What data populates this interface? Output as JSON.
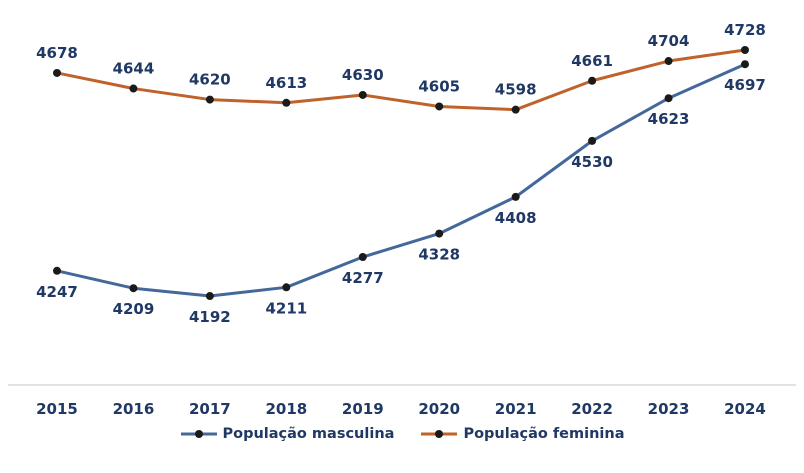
{
  "chart_data": {
    "type": "line",
    "title": "",
    "xlabel": "",
    "ylabel": "",
    "categories": [
      "2015",
      "2016",
      "2017",
      "2018",
      "2019",
      "2020",
      "2021",
      "2022",
      "2023",
      "2024"
    ],
    "series": [
      {
        "name": "População masculina",
        "color": "#44679C",
        "marker_color": "#1A1A1A",
        "label_position": "below",
        "values": [
          4247,
          4209,
          4192,
          4211,
          4277,
          4328,
          4408,
          4530,
          4623,
          4697
        ]
      },
      {
        "name": "População feminina",
        "color": "#C0622B",
        "marker_color": "#1A1A1A",
        "label_position": "above",
        "values": [
          4678,
          4644,
          4620,
          4613,
          4630,
          4605,
          4598,
          4661,
          4704,
          4728
        ]
      }
    ],
    "ylim": [
      4150,
      4780
    ],
    "grid": false,
    "legend_position": "bottom",
    "axis_line_color": "#D9D9D9",
    "label_color": "#1F3864",
    "background": "#FFFFFF"
  }
}
